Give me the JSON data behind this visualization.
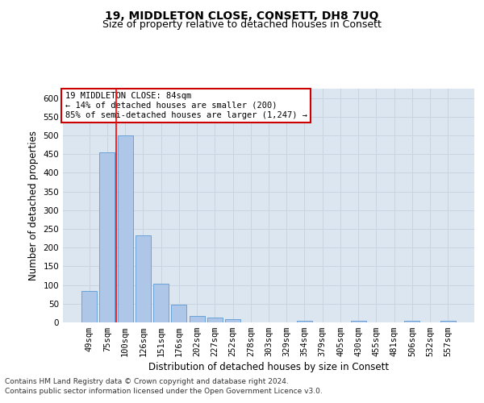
{
  "title": "19, MIDDLETON CLOSE, CONSETT, DH8 7UQ",
  "subtitle": "Size of property relative to detached houses in Consett",
  "xlabel": "Distribution of detached houses by size in Consett",
  "ylabel": "Number of detached properties",
  "categories": [
    "49sqm",
    "75sqm",
    "100sqm",
    "126sqm",
    "151sqm",
    "176sqm",
    "202sqm",
    "227sqm",
    "252sqm",
    "278sqm",
    "303sqm",
    "329sqm",
    "354sqm",
    "379sqm",
    "405sqm",
    "430sqm",
    "455sqm",
    "481sqm",
    "506sqm",
    "532sqm",
    "557sqm"
  ],
  "values": [
    85,
    455,
    500,
    233,
    103,
    47,
    18,
    12,
    8,
    0,
    0,
    0,
    5,
    0,
    0,
    5,
    0,
    0,
    5,
    0,
    5
  ],
  "bar_color": "#aec6e8",
  "bar_edge_color": "#5b9bd5",
  "bar_width": 0.85,
  "ylim": [
    0,
    625
  ],
  "yticks": [
    0,
    50,
    100,
    150,
    200,
    250,
    300,
    350,
    400,
    450,
    500,
    550,
    600
  ],
  "red_line_x": 1.5,
  "annotation_box_text": "19 MIDDLETON CLOSE: 84sqm\n← 14% of detached houses are smaller (200)\n85% of semi-detached houses are larger (1,247) →",
  "annotation_box_color": "#ffffff",
  "annotation_box_edge_color": "#cc0000",
  "grid_color": "#c8d4e0",
  "plot_bg_color": "#dce6f1",
  "footer_line1": "Contains HM Land Registry data © Crown copyright and database right 2024.",
  "footer_line2": "Contains public sector information licensed under the Open Government Licence v3.0.",
  "title_fontsize": 10,
  "subtitle_fontsize": 9,
  "xlabel_fontsize": 8.5,
  "ylabel_fontsize": 8.5,
  "tick_fontsize": 7.5,
  "annotation_fontsize": 7.5,
  "footer_fontsize": 6.5
}
